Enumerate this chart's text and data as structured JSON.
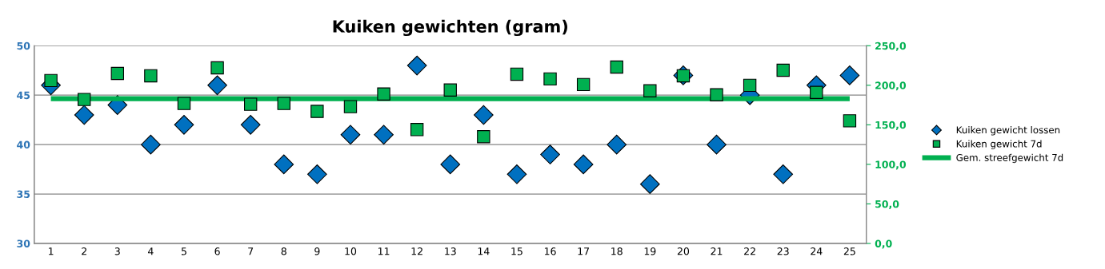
{
  "chart_data": {
    "type": "scatter",
    "title": "Kuiken gewichten (gram)",
    "categories": [
      "1",
      "2",
      "3",
      "4",
      "5",
      "6",
      "7",
      "8",
      "9",
      "10",
      "11",
      "12",
      "13",
      "14",
      "15",
      "16",
      "17",
      "18",
      "19",
      "20",
      "21",
      "22",
      "23",
      "24",
      "25"
    ],
    "series": [
      {
        "name": "Kuiken gewicht lossen",
        "marker": "diamond",
        "color": "#0070c0",
        "values": [
          46,
          43,
          44,
          40,
          42,
          46,
          42,
          38,
          37,
          41,
          41,
          48,
          38,
          43,
          37,
          39,
          38,
          40,
          36,
          47,
          40,
          45,
          37,
          46,
          47
        ]
      },
      {
        "name": "Kuiken gewicht 7d",
        "marker": "square",
        "axis": "y2",
        "color": "#00b050",
        "values": [
          206,
          182,
          215,
          212,
          177,
          222,
          176,
          177,
          167,
          173,
          189,
          144,
          194,
          135,
          214,
          208,
          201,
          223,
          193,
          212,
          188,
          200,
          219,
          191,
          155
        ]
      },
      {
        "name": "Gem. streefgewicht 7d",
        "type": "line",
        "marker": "none",
        "axis": "y2",
        "color": "#00b050",
        "values": [
          183,
          183,
          183,
          183,
          183,
          183,
          183,
          183,
          183,
          183,
          183,
          183,
          183,
          183,
          183,
          183,
          183,
          183,
          183,
          183,
          183,
          183,
          183,
          183,
          183
        ]
      }
    ],
    "ylim": [
      30,
      50
    ],
    "yticks": [
      30,
      35,
      40,
      45,
      50
    ],
    "y2lim": [
      0,
      250
    ],
    "y2ticks": [
      {
        "value": 0,
        "label": "0,0"
      },
      {
        "value": 50,
        "label": "50,0"
      },
      {
        "value": 100,
        "label": "100,0"
      },
      {
        "value": 150,
        "label": "150,0"
      },
      {
        "value": 200,
        "label": "200,0"
      },
      {
        "value": 250,
        "label": "250,0"
      }
    ],
    "grid": "y",
    "legend": "right"
  }
}
